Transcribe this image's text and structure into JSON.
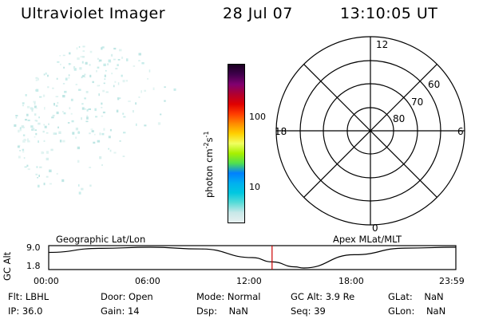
{
  "header": {
    "title": "Ultraviolet Imager",
    "date": "28 Jul 07",
    "time": "13:10:05 UT"
  },
  "colorbar": {
    "label": "photon cm",
    "label_exp1": "-2",
    "label_mid": "s",
    "label_exp2": "-1",
    "ticks": [
      "100",
      "10"
    ],
    "colors": [
      "#e8f0f0",
      "#c8e8e8",
      "#58dcd8",
      "#00c8e0",
      "#00b0f0",
      "#0080ff",
      "#50e050",
      "#a8f000",
      "#f0ff60",
      "#ffd000",
      "#ff8c00",
      "#ff3c00",
      "#e00000",
      "#b00030",
      "#800070",
      "#40004c",
      "#1a0020"
    ]
  },
  "polar_plot": {
    "mlt_labels": {
      "top": "12",
      "left": "18",
      "right": "6",
      "bottom": "0"
    },
    "lat_labels": [
      "60",
      "70",
      "80"
    ]
  },
  "timeline": {
    "y_label": "GC Alt",
    "y_ticks": [
      "9.0",
      "1.8"
    ],
    "left_title": "Geographic Lat/Lon",
    "right_title": "Apex MLat/MLT",
    "x_ticks": [
      "00:00",
      "06:00",
      "12:00",
      "18:00",
      "23:59"
    ],
    "current_time_fraction": 0.5487,
    "marker_color": "#cc0000"
  },
  "footer": {
    "col1": [
      {
        "k": "Flt:",
        "v": "LBHL"
      },
      {
        "k": "IP:",
        "v": "36.0"
      }
    ],
    "col2": [
      {
        "k": "Door:",
        "v": "Open"
      },
      {
        "k": "Gain:",
        "v": "14"
      }
    ],
    "col3": [
      {
        "k": "Mode:",
        "v": "Normal"
      },
      {
        "k": "Dsp:",
        "v": "NaN"
      }
    ],
    "col4": [
      {
        "k": "GC Alt:",
        "v": "3.9 Re"
      },
      {
        "k": "Seq:",
        "v": "39"
      }
    ],
    "col5": [
      {
        "k": "GLat:",
        "v": "NaN"
      },
      {
        "k": "GLon:",
        "v": "NaN"
      }
    ]
  },
  "chart_data": [
    {
      "type": "heatmap",
      "title": "Ultraviolet Imager",
      "note": "sparse low-intensity (faint cyan) speckle concentrated on upper-left of disk"
    },
    {
      "type": "line",
      "xlabel": "",
      "ylabel": "GC Alt",
      "x": [
        "00:00",
        "03:00",
        "06:00",
        "09:00",
        "12:00",
        "13:10",
        "14:30",
        "15:00",
        "18:00",
        "21:00",
        "23:59"
      ],
      "values": [
        7.2,
        8.6,
        9.0,
        8.4,
        5.4,
        3.9,
        2.2,
        1.8,
        6.4,
        8.7,
        9.0
      ],
      "ylim": [
        1.8,
        9.0
      ]
    }
  ]
}
